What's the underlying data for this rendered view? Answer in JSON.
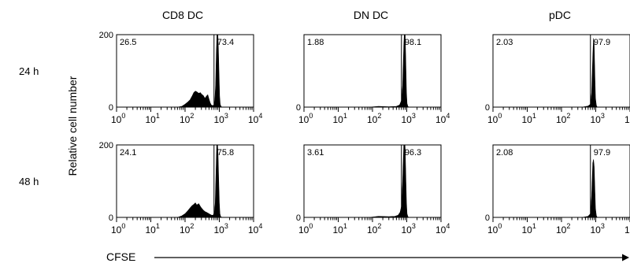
{
  "chart_data": {
    "type": "histogram-grid",
    "column_titles": [
      "CD8 DC",
      "DN DC",
      "pDC"
    ],
    "row_labels": [
      "24 h",
      "48 h"
    ],
    "ylabel": "Relative cell number",
    "xlabel": "CFSE",
    "x_scale": "log",
    "xlim": [
      1,
      10000
    ],
    "ylim": [
      0,
      200
    ],
    "y_ticks": [
      "200",
      "0"
    ],
    "x_tick_bases": [
      "10",
      "10",
      "10",
      "10",
      "10"
    ],
    "x_tick_exponents": [
      "0",
      "1",
      "2",
      "3",
      "4"
    ],
    "gate_position": 700,
    "panels": [
      {
        "row": "24 h",
        "column": "CD8 DC",
        "left_pct": "26.5",
        "right_pct": "73.4",
        "profile": [
          [
            60,
            0
          ],
          [
            80,
            2
          ],
          [
            100,
            8
          ],
          [
            120,
            14
          ],
          [
            140,
            20
          ],
          [
            160,
            30
          ],
          [
            180,
            40
          ],
          [
            200,
            44
          ],
          [
            220,
            42
          ],
          [
            250,
            38
          ],
          [
            280,
            40
          ],
          [
            300,
            36
          ],
          [
            340,
            32
          ],
          [
            380,
            24
          ],
          [
            420,
            30
          ],
          [
            460,
            34
          ],
          [
            500,
            22
          ],
          [
            540,
            12
          ],
          [
            580,
            6
          ],
          [
            640,
            4
          ],
          [
            700,
            6
          ],
          [
            740,
            20
          ],
          [
            780,
            60
          ],
          [
            820,
            150
          ],
          [
            860,
            210
          ],
          [
            900,
            210
          ],
          [
            940,
            160
          ],
          [
            980,
            90
          ],
          [
            1020,
            30
          ],
          [
            1060,
            8
          ],
          [
            1120,
            2
          ],
          [
            1200,
            0
          ]
        ]
      },
      {
        "row": "24 h",
        "column": "DN DC",
        "left_pct": "1.88",
        "right_pct": "98.1",
        "profile": [
          [
            80,
            0
          ],
          [
            150,
            2
          ],
          [
            300,
            1
          ],
          [
            500,
            2
          ],
          [
            620,
            6
          ],
          [
            700,
            18
          ],
          [
            760,
            60
          ],
          [
            820,
            170
          ],
          [
            860,
            215
          ],
          [
            900,
            200
          ],
          [
            940,
            120
          ],
          [
            980,
            40
          ],
          [
            1020,
            10
          ],
          [
            1080,
            2
          ],
          [
            1150,
            0
          ]
        ]
      },
      {
        "row": "24 h",
        "column": "pDC",
        "left_pct": "2.03",
        "right_pct": "97.9",
        "profile": [
          [
            400,
            0
          ],
          [
            600,
            3
          ],
          [
            700,
            8
          ],
          [
            760,
            40
          ],
          [
            820,
            140
          ],
          [
            860,
            190
          ],
          [
            900,
            170
          ],
          [
            940,
            90
          ],
          [
            980,
            25
          ],
          [
            1040,
            5
          ],
          [
            1100,
            0
          ]
        ]
      },
      {
        "row": "48 h",
        "column": "CD8 DC",
        "left_pct": "24.1",
        "right_pct": "75.8",
        "profile": [
          [
            60,
            0
          ],
          [
            80,
            4
          ],
          [
            100,
            10
          ],
          [
            120,
            18
          ],
          [
            140,
            26
          ],
          [
            160,
            32
          ],
          [
            180,
            36
          ],
          [
            200,
            40
          ],
          [
            220,
            34
          ],
          [
            250,
            38
          ],
          [
            280,
            30
          ],
          [
            300,
            26
          ],
          [
            340,
            20
          ],
          [
            380,
            16
          ],
          [
            420,
            14
          ],
          [
            460,
            12
          ],
          [
            500,
            10
          ],
          [
            540,
            8
          ],
          [
            600,
            6
          ],
          [
            660,
            6
          ],
          [
            720,
            14
          ],
          [
            760,
            40
          ],
          [
            800,
            120
          ],
          [
            840,
            200
          ],
          [
            880,
            210
          ],
          [
            920,
            170
          ],
          [
            960,
            100
          ],
          [
            1000,
            40
          ],
          [
            1040,
            10
          ],
          [
            1100,
            2
          ],
          [
            1200,
            0
          ]
        ]
      },
      {
        "row": "48 h",
        "column": "DN DC",
        "left_pct": "3.61",
        "right_pct": "96.3",
        "profile": [
          [
            80,
            0
          ],
          [
            150,
            3
          ],
          [
            300,
            2
          ],
          [
            450,
            3
          ],
          [
            560,
            6
          ],
          [
            640,
            14
          ],
          [
            700,
            30
          ],
          [
            760,
            100
          ],
          [
            820,
            200
          ],
          [
            860,
            220
          ],
          [
            900,
            190
          ],
          [
            940,
            110
          ],
          [
            980,
            40
          ],
          [
            1020,
            10
          ],
          [
            1080,
            2
          ],
          [
            1150,
            0
          ]
        ]
      },
      {
        "row": "48 h",
        "column": "pDC",
        "left_pct": "2.08",
        "right_pct": "97.9",
        "profile": [
          [
            400,
            0
          ],
          [
            600,
            3
          ],
          [
            700,
            10
          ],
          [
            760,
            60
          ],
          [
            820,
            150
          ],
          [
            860,
            160
          ],
          [
            900,
            140
          ],
          [
            940,
            80
          ],
          [
            980,
            25
          ],
          [
            1040,
            5
          ],
          [
            1100,
            0
          ]
        ]
      }
    ]
  }
}
